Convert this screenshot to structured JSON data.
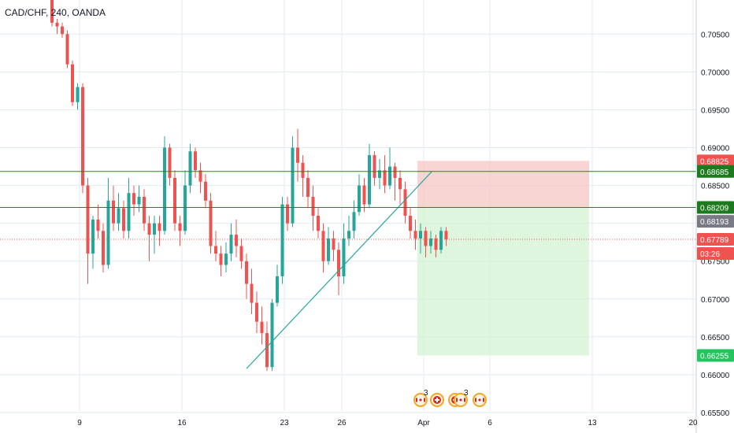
{
  "header": {
    "symbol_title": "CAD/CHF, 240, OANDA"
  },
  "colors": {
    "up": "#26a69a",
    "down": "#ef5350",
    "grid": "#e1ecf2",
    "trendline": "#26a69a",
    "level_line": "#1b8a1b",
    "stop_zone": "#f6c5c3",
    "target_zone": "#d6f3d6",
    "current_price_line": "#ef5350"
  },
  "chart_data": {
    "type": "candlestick",
    "instrument": "CAD/CHF",
    "interval": "240",
    "source": "OANDA",
    "y_ticks": [
      "0.70500",
      "0.70000",
      "0.69500",
      "0.69000",
      "0.68500",
      "0.68000",
      "0.67500",
      "0.67000",
      "0.66500",
      "0.66000",
      "0.65500"
    ],
    "ylim": [
      0.6523,
      0.7095
    ],
    "x_ticks": [
      "9",
      "16",
      "23",
      "26",
      "Apr",
      "6",
      "13",
      "20"
    ],
    "price_labels": [
      {
        "value": "0.68825",
        "kind": "stop"
      },
      {
        "value": "0.68685",
        "kind": "level"
      },
      {
        "value": "0.68209",
        "kind": "level"
      },
      {
        "value": "0.68193",
        "kind": "last"
      },
      {
        "value": "0.67789",
        "kind": "current"
      },
      {
        "value": "03:26",
        "kind": "countdown"
      },
      {
        "value": "0.66255",
        "kind": "target"
      }
    ],
    "horizontal_levels": [
      0.68685,
      0.68209
    ],
    "current_price": 0.67789,
    "position": {
      "entry": 0.68209,
      "stop": 0.68825,
      "target": 0.66255
    },
    "trendline": {
      "from_price": 0.6608,
      "to_price": 0.6868
    },
    "candles": [
      [
        0.7095,
        0.7065,
        0.7095,
        0.706
      ],
      [
        0.7065,
        0.706,
        0.707,
        0.705
      ],
      [
        0.706,
        0.705,
        0.7065,
        0.7045
      ],
      [
        0.705,
        0.701,
        0.7055,
        0.7005
      ],
      [
        0.701,
        0.696,
        0.7015,
        0.6955
      ],
      [
        0.696,
        0.698,
        0.6985,
        0.695
      ],
      [
        0.698,
        0.685,
        0.6985,
        0.684
      ],
      [
        0.685,
        0.676,
        0.686,
        0.672
      ],
      [
        0.676,
        0.6805,
        0.681,
        0.674
      ],
      [
        0.6805,
        0.679,
        0.6825,
        0.678
      ],
      [
        0.679,
        0.6745,
        0.68,
        0.6735
      ],
      [
        0.6745,
        0.683,
        0.686,
        0.674
      ],
      [
        0.683,
        0.68,
        0.685,
        0.679
      ],
      [
        0.68,
        0.682,
        0.684,
        0.679
      ],
      [
        0.682,
        0.679,
        0.683,
        0.678
      ],
      [
        0.679,
        0.684,
        0.686,
        0.678
      ],
      [
        0.684,
        0.6825,
        0.685,
        0.681
      ],
      [
        0.6825,
        0.6835,
        0.685,
        0.6815
      ],
      [
        0.6835,
        0.68,
        0.6845,
        0.679
      ],
      [
        0.68,
        0.6785,
        0.681,
        0.675
      ],
      [
        0.6785,
        0.68,
        0.681,
        0.676
      ],
      [
        0.68,
        0.679,
        0.681,
        0.677
      ],
      [
        0.679,
        0.69,
        0.6915,
        0.6785
      ],
      [
        0.69,
        0.686,
        0.6905,
        0.685
      ],
      [
        0.686,
        0.68,
        0.687,
        0.679
      ],
      [
        0.68,
        0.679,
        0.681,
        0.677
      ],
      [
        0.679,
        0.685,
        0.687,
        0.6785
      ],
      [
        0.685,
        0.6895,
        0.6905,
        0.684
      ],
      [
        0.6895,
        0.687,
        0.69,
        0.686
      ],
      [
        0.687,
        0.6855,
        0.688,
        0.684
      ],
      [
        0.6855,
        0.683,
        0.6865,
        0.682
      ],
      [
        0.683,
        0.677,
        0.684,
        0.676
      ],
      [
        0.677,
        0.676,
        0.679,
        0.675
      ],
      [
        0.676,
        0.6745,
        0.677,
        0.673
      ],
      [
        0.6745,
        0.676,
        0.6775,
        0.6735
      ],
      [
        0.676,
        0.6785,
        0.68,
        0.675
      ],
      [
        0.6785,
        0.677,
        0.6805,
        0.6755
      ],
      [
        0.677,
        0.675,
        0.678,
        0.674
      ],
      [
        0.675,
        0.672,
        0.676,
        0.67
      ],
      [
        0.672,
        0.6695,
        0.674,
        0.668
      ],
      [
        0.6695,
        0.667,
        0.671,
        0.6655
      ],
      [
        0.667,
        0.6655,
        0.669,
        0.664
      ],
      [
        0.6655,
        0.661,
        0.667,
        0.6605
      ],
      [
        0.661,
        0.6695,
        0.67,
        0.6605
      ],
      [
        0.6695,
        0.673,
        0.6745,
        0.669
      ],
      [
        0.673,
        0.6825,
        0.6835,
        0.672
      ],
      [
        0.6825,
        0.68,
        0.6835,
        0.679
      ],
      [
        0.68,
        0.69,
        0.6915,
        0.6795
      ],
      [
        0.69,
        0.688,
        0.6925,
        0.6855
      ],
      [
        0.688,
        0.686,
        0.689,
        0.6835
      ],
      [
        0.686,
        0.6835,
        0.687,
        0.682
      ],
      [
        0.6835,
        0.681,
        0.685,
        0.679
      ],
      [
        0.681,
        0.679,
        0.682,
        0.678
      ],
      [
        0.679,
        0.675,
        0.68,
        0.6735
      ],
      [
        0.675,
        0.678,
        0.6795,
        0.6745
      ],
      [
        0.678,
        0.6765,
        0.679,
        0.675
      ],
      [
        0.6765,
        0.673,
        0.6775,
        0.6705
      ],
      [
        0.673,
        0.678,
        0.68,
        0.672
      ],
      [
        0.678,
        0.679,
        0.681,
        0.677
      ],
      [
        0.679,
        0.6815,
        0.683,
        0.678
      ],
      [
        0.6815,
        0.685,
        0.6865,
        0.681
      ],
      [
        0.685,
        0.6825,
        0.686,
        0.6815
      ],
      [
        0.6825,
        0.689,
        0.6905,
        0.682
      ],
      [
        0.689,
        0.686,
        0.6895,
        0.685
      ],
      [
        0.686,
        0.687,
        0.6885,
        0.6845
      ],
      [
        0.687,
        0.685,
        0.689,
        0.684
      ],
      [
        0.685,
        0.6875,
        0.69,
        0.6845
      ],
      [
        0.6875,
        0.686,
        0.688,
        0.683
      ],
      [
        0.686,
        0.6845,
        0.687,
        0.6825
      ],
      [
        0.6845,
        0.681,
        0.6855,
        0.68
      ],
      [
        0.681,
        0.679,
        0.682,
        0.678
      ],
      [
        0.679,
        0.678,
        0.6805,
        0.6765
      ],
      [
        0.678,
        0.679,
        0.68,
        0.676
      ],
      [
        0.679,
        0.677,
        0.6795,
        0.6755
      ],
      [
        0.677,
        0.678,
        0.679,
        0.676
      ],
      [
        0.678,
        0.6765,
        0.6785,
        0.6755
      ],
      [
        0.6765,
        0.679,
        0.6795,
        0.676
      ],
      [
        0.679,
        0.6779,
        0.6795,
        0.677
      ]
    ]
  },
  "events": [
    {
      "icon": "canada-flag-icon",
      "count": "3"
    },
    {
      "icon": "swiss-flag-icon",
      "count": ""
    },
    {
      "icon": "swiss-flag-icon",
      "count": ""
    },
    {
      "icon": "canada-flag-icon",
      "count": "3"
    },
    {
      "icon": "canada-flag-icon",
      "count": ""
    }
  ]
}
